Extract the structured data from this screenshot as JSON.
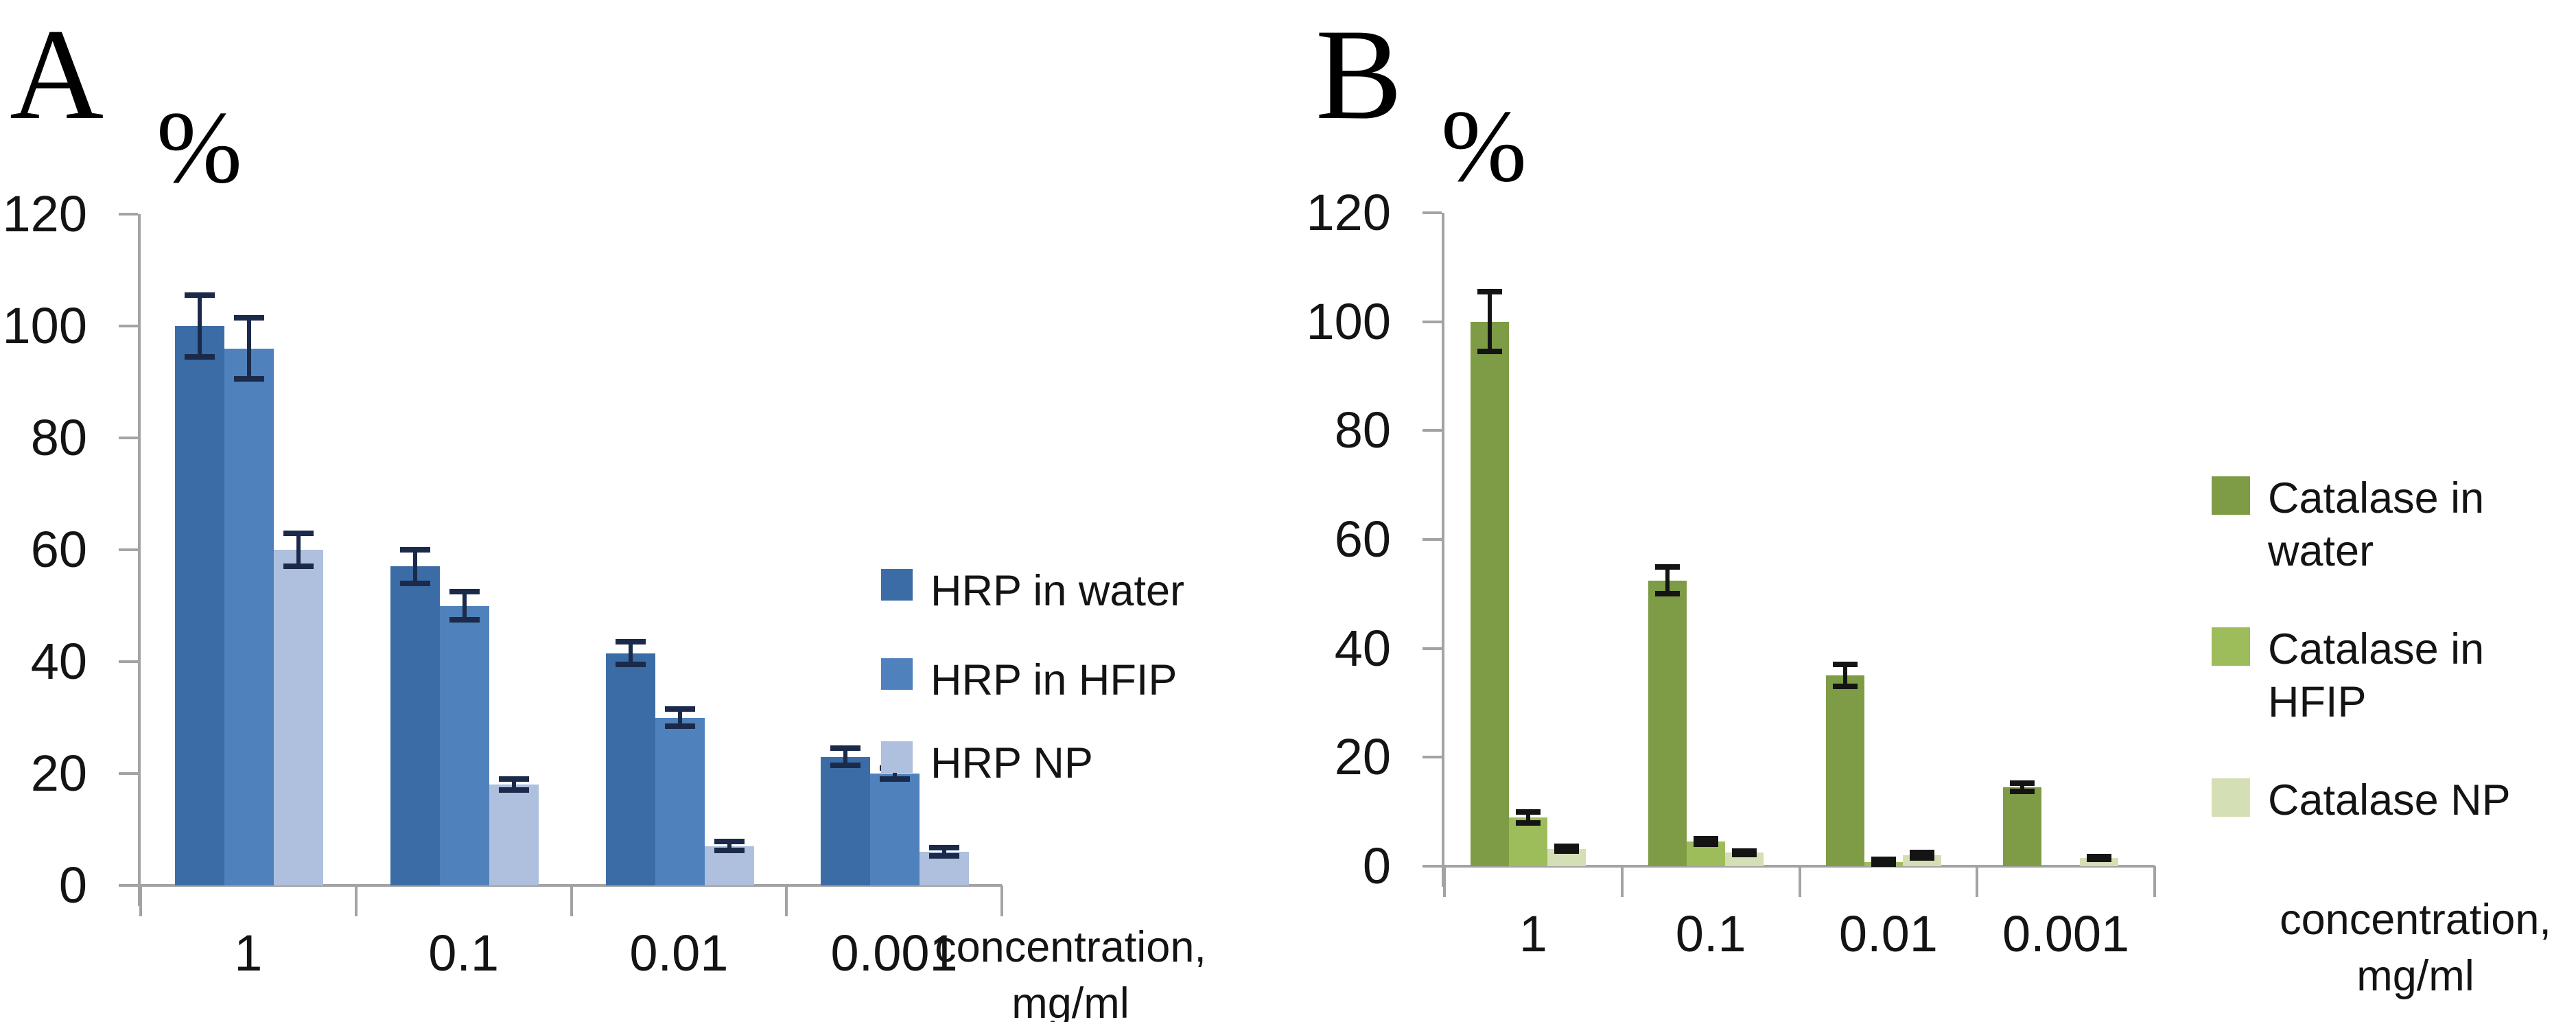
{
  "figure": {
    "background": "#ffffff",
    "axis_color": "#a3a3a3"
  },
  "chart_data": [
    {
      "type": "bar",
      "panel_label": "A",
      "ylabel": "%",
      "xlabel_line1": "concentration,",
      "xlabel_line2": "mg/ml",
      "ylim": [
        0,
        120
      ],
      "y_ticks": [
        120,
        100,
        80,
        60,
        40,
        20,
        0
      ],
      "categories": [
        "1",
        "0.1",
        "0.01",
        "0.001"
      ],
      "grid": false,
      "legend_position": "right",
      "error_bar_color": "#1b2a4a",
      "series": [
        {
          "name": "HRP in water",
          "color": "#3b6ca6",
          "values": [
            100,
            57,
            41.5,
            23
          ],
          "errors": [
            5.5,
            3,
            2,
            1.5
          ]
        },
        {
          "name": "HRP in HFIP",
          "color": "#4f82bd",
          "values": [
            96,
            50,
            30,
            20
          ],
          "errors": [
            5.5,
            2.5,
            1.5,
            1
          ]
        },
        {
          "name": "HRP NP",
          "color": "#aec0dd",
          "values": [
            60,
            18,
            7,
            6
          ],
          "errors": [
            3,
            1,
            0.8,
            0.7
          ]
        }
      ]
    },
    {
      "type": "bar",
      "panel_label": "B",
      "ylabel": "%",
      "xlabel_line1": "concentration,",
      "xlabel_line2": "mg/ml",
      "ylim": [
        0,
        120
      ],
      "y_ticks": [
        120,
        100,
        80,
        60,
        40,
        20,
        0
      ],
      "categories": [
        "1",
        "0.1",
        "0.01",
        "0.001"
      ],
      "grid": false,
      "legend_position": "right",
      "error_bar_color": "#141414",
      "series": [
        {
          "name": "Catalase in water",
          "color": "#7d9c45",
          "values": [
            100,
            52.5,
            35,
            14.5
          ],
          "errors": [
            5.5,
            2.5,
            2,
            0.8
          ]
        },
        {
          "name": "Catalase in HFIP",
          "color": "#9dbc5a",
          "values": [
            9,
            4.5,
            0.8,
            0
          ],
          "errors": [
            1,
            0.5,
            0.4,
            0
          ]
        },
        {
          "name": "Catalase NP",
          "color": "#d5dfb5",
          "values": [
            3.2,
            2.5,
            2,
            1.5
          ],
          "errors": [
            0.4,
            0.3,
            0.5,
            0.3
          ]
        }
      ]
    }
  ]
}
